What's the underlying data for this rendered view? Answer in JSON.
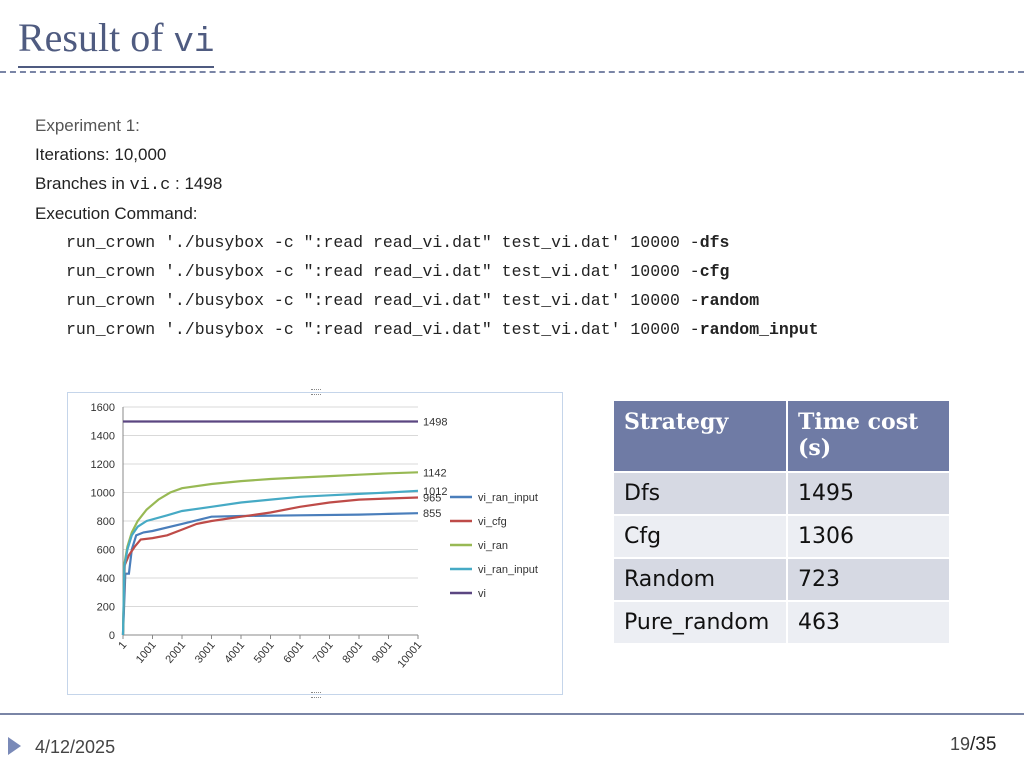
{
  "slide": {
    "title_text": "Result of ",
    "title_code": "vi",
    "experiment_label": "Experiment 1:",
    "iterations": "Iterations: 10,000",
    "branches_prefix": "Branches in ",
    "branches_code": "vi.c",
    "branches_suffix": " : 1498",
    "exec_label": "Execution Command:",
    "commands": [
      {
        "base": "run_crown './busybox -c \":read read_vi.dat\" test_vi.dat' 10000 -",
        "flag": "dfs"
      },
      {
        "base": "run_crown './busybox -c \":read read_vi.dat\" test_vi.dat' 10000 -",
        "flag": "cfg"
      },
      {
        "base": "run_crown './busybox -c \":read read_vi.dat\" test_vi.dat' 10000 -",
        "flag": "random"
      },
      {
        "base": "run_crown './busybox -c \":read read_vi.dat\" test_vi.dat' 10000 -",
        "flag": "random_input"
      }
    ]
  },
  "table": {
    "headers": [
      "Strategy",
      "Time cost (s)"
    ],
    "rows": [
      [
        "Dfs",
        "1495"
      ],
      [
        "Cfg",
        "1306"
      ],
      [
        "Random",
        "723"
      ],
      [
        "Pure_random",
        "463"
      ]
    ]
  },
  "footer": {
    "date": "4/12/2025",
    "page": "19",
    "total": "/35"
  },
  "chart_data": {
    "type": "line",
    "ylim": [
      0,
      1600
    ],
    "yticks": [
      "0",
      "200",
      "400",
      "600",
      "800",
      "1000",
      "1200",
      "1400",
      "1600"
    ],
    "xlim": [
      1,
      10001
    ],
    "xticks": [
      "1",
      "1001",
      "2001",
      "3001",
      "4001",
      "5001",
      "6001",
      "7001",
      "8001",
      "9001",
      "10001"
    ],
    "legend_position": "right",
    "series": [
      {
        "name": "vi_ran_input",
        "color": "#4a7ebb",
        "end_label": "855",
        "points": [
          [
            1,
            0
          ],
          [
            80,
            430
          ],
          [
            200,
            430
          ],
          [
            300,
            600
          ],
          [
            450,
            700
          ],
          [
            700,
            720
          ],
          [
            1000,
            730
          ],
          [
            2000,
            780
          ],
          [
            3000,
            830
          ],
          [
            4000,
            835
          ],
          [
            6000,
            840
          ],
          [
            8000,
            845
          ],
          [
            9000,
            850
          ],
          [
            10001,
            855
          ]
        ]
      },
      {
        "name": "vi_cfg",
        "color": "#be4b48",
        "end_label": "965",
        "points": [
          [
            1,
            0
          ],
          [
            60,
            490
          ],
          [
            200,
            560
          ],
          [
            400,
            620
          ],
          [
            600,
            670
          ],
          [
            1000,
            680
          ],
          [
            1500,
            700
          ],
          [
            2000,
            740
          ],
          [
            2500,
            780
          ],
          [
            3000,
            800
          ],
          [
            4000,
            830
          ],
          [
            5000,
            860
          ],
          [
            6000,
            900
          ],
          [
            7000,
            930
          ],
          [
            8000,
            950
          ],
          [
            9000,
            958
          ],
          [
            10001,
            965
          ]
        ]
      },
      {
        "name": "vi_ran",
        "color": "#98b954",
        "end_label": "1142",
        "points": [
          [
            1,
            0
          ],
          [
            50,
            500
          ],
          [
            150,
            620
          ],
          [
            300,
            720
          ],
          [
            500,
            800
          ],
          [
            800,
            880
          ],
          [
            1200,
            950
          ],
          [
            1600,
            1000
          ],
          [
            2000,
            1030
          ],
          [
            3000,
            1060
          ],
          [
            4000,
            1080
          ],
          [
            5000,
            1095
          ],
          [
            6000,
            1105
          ],
          [
            7000,
            1115
          ],
          [
            8000,
            1125
          ],
          [
            9000,
            1135
          ],
          [
            10001,
            1142
          ]
        ]
      },
      {
        "name": "vi_ran_input",
        "color": "#46aac5",
        "end_label": "1012",
        "points": [
          [
            1,
            0
          ],
          [
            50,
            480
          ],
          [
            150,
            600
          ],
          [
            300,
            700
          ],
          [
            500,
            760
          ],
          [
            800,
            800
          ],
          [
            1500,
            840
          ],
          [
            2000,
            870
          ],
          [
            3000,
            900
          ],
          [
            4000,
            930
          ],
          [
            5000,
            950
          ],
          [
            6000,
            970
          ],
          [
            7000,
            980
          ],
          [
            8000,
            990
          ],
          [
            9000,
            1000
          ],
          [
            10001,
            1012
          ]
        ]
      },
      {
        "name": "vi",
        "color": "#5b4681",
        "end_label": "1498",
        "points": [
          [
            1,
            1498
          ],
          [
            10001,
            1498
          ]
        ]
      }
    ]
  }
}
